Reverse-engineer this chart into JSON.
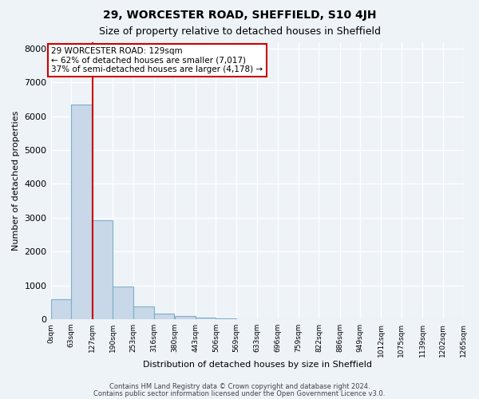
{
  "title1": "29, WORCESTER ROAD, SHEFFIELD, S10 4JH",
  "title2": "Size of property relative to detached houses in Sheffield",
  "xlabel": "Distribution of detached houses by size in Sheffield",
  "ylabel": "Number of detached properties",
  "bin_edges": [
    0,
    63,
    127,
    190,
    253,
    316,
    380,
    443,
    506,
    569,
    633,
    696,
    759,
    822,
    886,
    949,
    1012,
    1075,
    1139,
    1202,
    1265
  ],
  "bar_heights": [
    580,
    6350,
    2920,
    960,
    370,
    155,
    105,
    50,
    30,
    0,
    0,
    0,
    0,
    0,
    0,
    0,
    0,
    0,
    0,
    0
  ],
  "bar_color": "#c8d8e8",
  "bar_edge_color": "#7faec8",
  "property_size": 129,
  "property_line_color": "#cc0000",
  "annotation_line1": "29 WORCESTER ROAD: 129sqm",
  "annotation_line2": "← 62% of detached houses are smaller (7,017)",
  "annotation_line3": "37% of semi-detached houses are larger (4,178) →",
  "annotation_box_color": "#cc0000",
  "annotation_fill": "white",
  "ylim": [
    0,
    8200
  ],
  "yticks": [
    0,
    1000,
    2000,
    3000,
    4000,
    5000,
    6000,
    7000,
    8000
  ],
  "tick_labels": [
    "0sqm",
    "63sqm",
    "127sqm",
    "190sqm",
    "253sqm",
    "316sqm",
    "380sqm",
    "443sqm",
    "506sqm",
    "569sqm",
    "633sqm",
    "696sqm",
    "759sqm",
    "822sqm",
    "886sqm",
    "949sqm",
    "1012sqm",
    "1075sqm",
    "1139sqm",
    "1202sqm",
    "1265sqm"
  ],
  "footer1": "Contains HM Land Registry data © Crown copyright and database right 2024.",
  "footer2": "Contains public sector information licensed under the Open Government Licence v3.0.",
  "background_color": "#eef3f8",
  "grid_color": "white"
}
